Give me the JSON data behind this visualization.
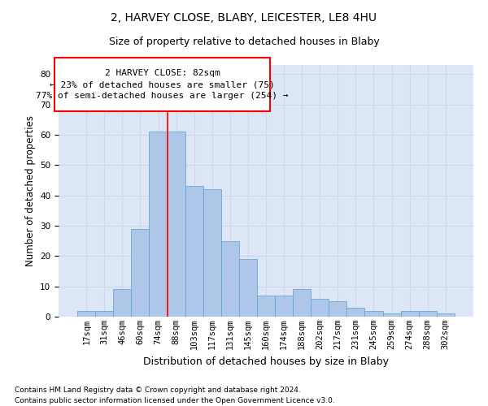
{
  "title1": "2, HARVEY CLOSE, BLABY, LEICESTER, LE8 4HU",
  "title2": "Size of property relative to detached houses in Blaby",
  "xlabel": "Distribution of detached houses by size in Blaby",
  "ylabel": "Number of detached properties",
  "footnote1": "Contains HM Land Registry data © Crown copyright and database right 2024.",
  "footnote2": "Contains public sector information licensed under the Open Government Licence v3.0.",
  "bin_labels": [
    "17sqm",
    "31sqm",
    "46sqm",
    "60sqm",
    "74sqm",
    "88sqm",
    "103sqm",
    "117sqm",
    "131sqm",
    "145sqm",
    "160sqm",
    "174sqm",
    "188sqm",
    "202sqm",
    "217sqm",
    "231sqm",
    "245sqm",
    "259sqm",
    "274sqm",
    "288sqm",
    "302sqm"
  ],
  "bar_heights": [
    2,
    2,
    9,
    29,
    61,
    61,
    43,
    42,
    25,
    19,
    7,
    7,
    9,
    6,
    5,
    3,
    2,
    1,
    2,
    2,
    1
  ],
  "bar_color": "#aec6e8",
  "bar_edge_color": "#5a9fd4",
  "grid_color": "#d0d8e8",
  "background_color": "#dce6f5",
  "vline_x": 4.5,
  "vline_color": "red",
  "annotation_line1": "2 HARVEY CLOSE: 82sqm",
  "annotation_line2": "← 23% of detached houses are smaller (75)",
  "annotation_line3": "77% of semi-detached houses are larger (254) →",
  "ylim": [
    0,
    83
  ],
  "yticks": [
    0,
    10,
    20,
    30,
    40,
    50,
    60,
    70,
    80
  ],
  "title1_fontsize": 10,
  "title2_fontsize": 9,
  "ylabel_fontsize": 8.5,
  "xlabel_fontsize": 9,
  "tick_fontsize": 7.5,
  "annot_fontsize": 8,
  "footnote_fontsize": 6.5
}
